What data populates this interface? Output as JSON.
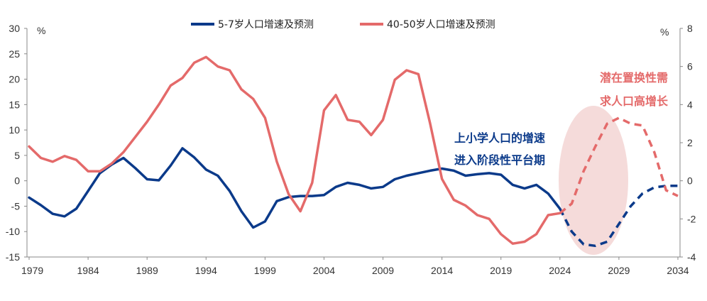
{
  "chart_data": {
    "type": "line",
    "title": "",
    "xlabel": "",
    "ylabel_left": "%",
    "ylabel_right": "%",
    "x": [
      1979,
      1980,
      1981,
      1982,
      1983,
      1984,
      1985,
      1986,
      1987,
      1988,
      1989,
      1990,
      1991,
      1992,
      1993,
      1994,
      1995,
      1996,
      1997,
      1998,
      1999,
      2000,
      2001,
      2002,
      2003,
      2004,
      2005,
      2006,
      2007,
      2008,
      2009,
      2010,
      2011,
      2012,
      2013,
      2014,
      2015,
      2016,
      2017,
      2018,
      2019,
      2020,
      2021,
      2022,
      2023,
      2024,
      2025,
      2026,
      2027,
      2028,
      2029,
      2030,
      2031,
      2032,
      2033,
      2034
    ],
    "x_ticks": [
      "1979",
      "1984",
      "1989",
      "1994",
      "1999",
      "2004",
      "2009",
      "2014",
      "2019",
      "2024",
      "2029",
      "2034"
    ],
    "ylim_left": [
      -15,
      30
    ],
    "ylim_right": [
      -4,
      8
    ],
    "yticks_left": [
      "30",
      "25",
      "20",
      "15",
      "10",
      "5",
      "0",
      "-5",
      "-10",
      "-15"
    ],
    "yticks_right": [
      "8",
      "6",
      "4",
      "2",
      "0",
      "-2",
      "-4"
    ],
    "series": [
      {
        "name": "5-7岁人口增速及预测",
        "axis": "left",
        "color": "#0B3A8A",
        "forecast_from": 2024,
        "values": [
          -3.3,
          -4.8,
          -6.5,
          -7.0,
          -5.5,
          -2.0,
          1.5,
          3.2,
          4.5,
          2.5,
          0.3,
          0.1,
          3.0,
          6.4,
          4.6,
          2.2,
          1.0,
          -2.0,
          -6.0,
          -9.2,
          -8.0,
          -4.0,
          -3.2,
          -3.0,
          -3.0,
          -2.8,
          -1.2,
          -0.4,
          -0.8,
          -1.5,
          -1.2,
          0.3,
          1.0,
          1.5,
          2.0,
          2.4,
          2.0,
          1.0,
          1.3,
          1.5,
          1.2,
          -0.8,
          -1.5,
          -0.8,
          -2.5,
          -5.5,
          -10.0,
          -12.5,
          -12.8,
          -12.0,
          -8.5,
          -5.0,
          -2.5,
          -1.3,
          -1.0,
          -1.0
        ]
      },
      {
        "name": "40-50岁人口增速及预测",
        "axis": "right",
        "color": "#E46A6A",
        "forecast_from": 2024,
        "values": [
          1.8,
          1.2,
          1.0,
          1.3,
          1.1,
          0.5,
          0.5,
          0.9,
          1.5,
          2.3,
          3.1,
          4.0,
          5.0,
          5.4,
          6.2,
          6.5,
          6.0,
          5.8,
          4.8,
          4.3,
          3.3,
          1.0,
          -0.7,
          -1.6,
          -0.1,
          3.7,
          4.5,
          3.2,
          3.1,
          2.4,
          3.2,
          5.3,
          5.8,
          5.6,
          3.0,
          0.1,
          -1.0,
          -1.3,
          -1.8,
          -2.0,
          -2.8,
          -3.3,
          -3.2,
          -2.8,
          -1.8,
          -1.7,
          -1.2,
          0.5,
          1.8,
          3.0,
          3.3,
          3.0,
          2.9,
          1.5,
          -0.5,
          -0.8
        ]
      }
    ],
    "annotations": [
      {
        "lines": [
          "上小学人口的增速",
          "进入阶段性平台期"
        ],
        "color": "#0B3A8A"
      },
      {
        "lines": [
          "潜在置换性需",
          "求人口高增长"
        ],
        "color": "#E46A6A"
      }
    ],
    "highlight": {
      "x_center": 2027,
      "color": "#F3D5D3"
    },
    "legend_position": "top"
  }
}
